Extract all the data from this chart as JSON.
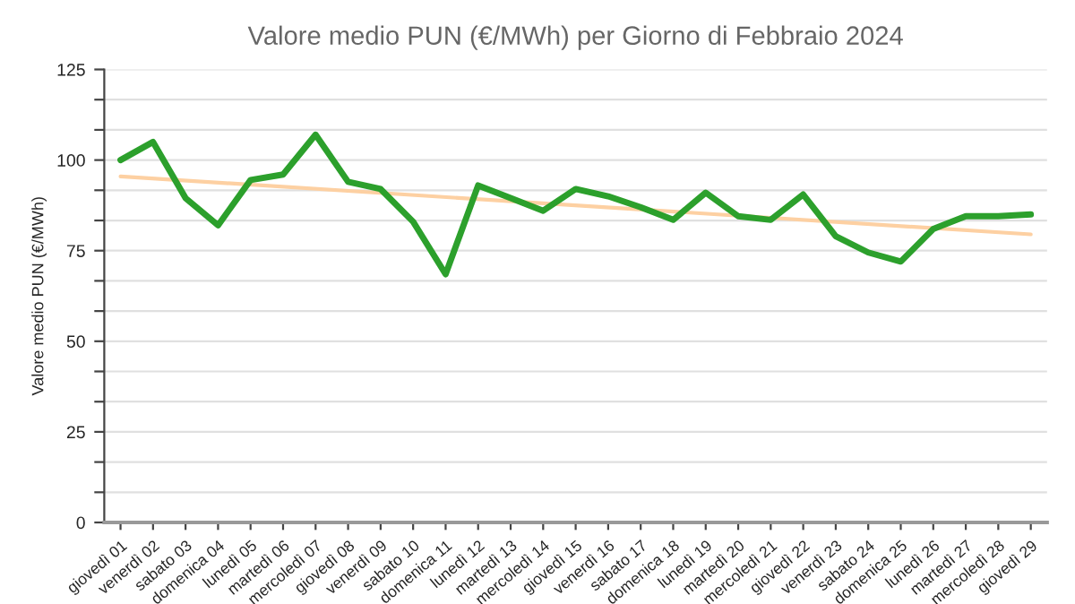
{
  "chart_data": {
    "type": "line",
    "title": "Valore medio PUN (€/MWh) per Giorno di Febbraio 2024",
    "ylabel": "Valore medio PUN (€/MWh)",
    "categories": [
      "giovedì 01",
      "venerdì 02",
      "sabato 03",
      "domenica 04",
      "lunedì 05",
      "martedì 06",
      "mercoledì 07",
      "giovedì 08",
      "venerdì 09",
      "sabato 10",
      "domenica 11",
      "lunedì 12",
      "martedì 13",
      "mercoledì 14",
      "giovedì 15",
      "venerdì 16",
      "sabato 17",
      "domenica 18",
      "lunedì 19",
      "martedì 20",
      "mercoledì 21",
      "giovedì 22",
      "venerdì 23",
      "sabato 24",
      "domenica 25",
      "lunedì 26",
      "martedì 27",
      "mercoledì 28",
      "giovedì 29"
    ],
    "series": [
      {
        "color": "#2ca02c",
        "values": [
          100,
          105,
          89.5,
          82,
          94.5,
          96,
          107,
          94,
          92,
          83,
          68.5,
          93,
          89.5,
          86,
          92,
          90,
          87,
          83.5,
          91,
          84.5,
          83.5,
          90.5,
          79,
          74.5,
          72,
          81,
          84.5,
          84.5,
          85
        ]
      },
      {
        "color": "#fdd0a2",
        "values": [
          95.5,
          null,
          null,
          null,
          null,
          null,
          null,
          null,
          null,
          null,
          null,
          null,
          null,
          null,
          null,
          null,
          null,
          null,
          null,
          null,
          null,
          null,
          null,
          null,
          null,
          null,
          null,
          null,
          79.5
        ]
      }
    ],
    "ylim": [
      0,
      125
    ],
    "yticks": [
      0,
      {
        "value": 8.33,
        "label": null
      },
      {
        "value": 16.67,
        "label": null
      },
      25,
      {
        "value": 33.33,
        "label": null
      },
      {
        "value": 41.67,
        "label": null
      },
      50,
      {
        "value": 58.33,
        "label": null
      },
      {
        "value": 66.67,
        "label": null
      },
      75,
      {
        "value": 83.33,
        "label": null
      },
      {
        "value": 91.67,
        "label": null
      },
      100,
      {
        "value": 108.33,
        "label": null
      },
      {
        "value": 116.67,
        "label": null
      },
      125
    ],
    "grid": "y",
    "legend": false,
    "marker": "none",
    "line_style": "solid"
  }
}
